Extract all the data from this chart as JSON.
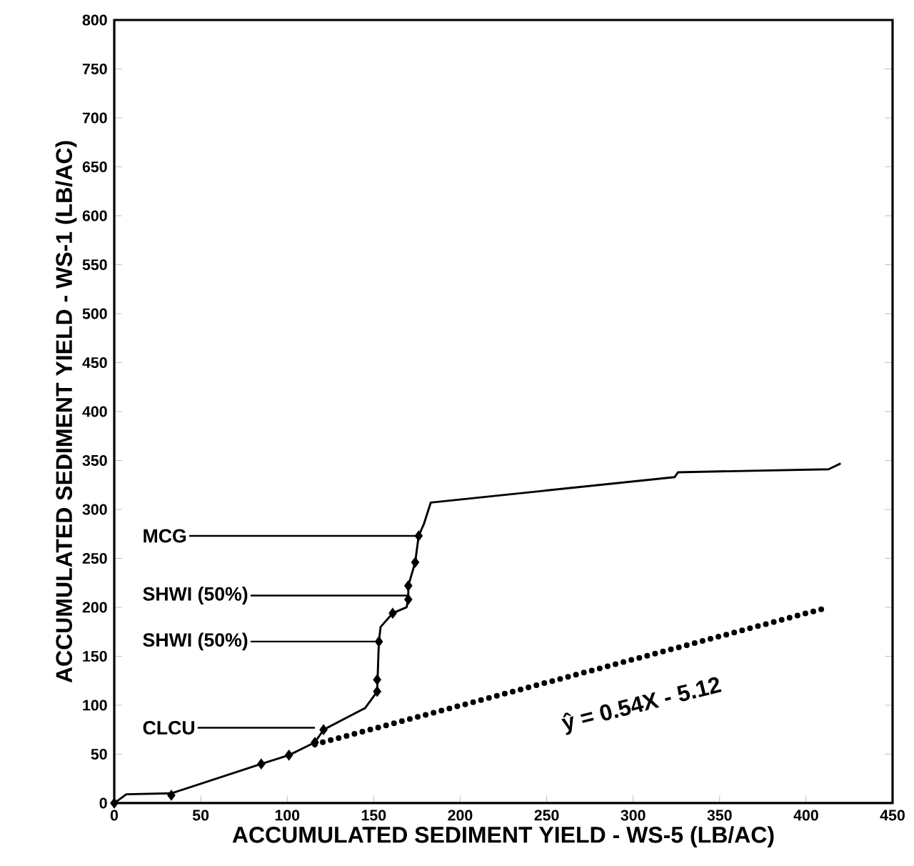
{
  "chart_data": {
    "type": "line",
    "xlabel": "ACCUMULATED SEDIMENT YIELD - WS-5 (LB/AC)",
    "ylabel": "ACCUMULATED SEDIMENT YIELD - WS-1 (LB/AC)",
    "xlim": [
      0,
      450
    ],
    "ylim": [
      0,
      800
    ],
    "xticks": [
      0,
      50,
      100,
      150,
      200,
      250,
      300,
      350,
      400,
      450
    ],
    "yticks": [
      0,
      50,
      100,
      150,
      200,
      250,
      300,
      350,
      400,
      450,
      500,
      550,
      600,
      650,
      700,
      750,
      800
    ],
    "grid": false,
    "series": [
      {
        "color": "#000000",
        "marker": "none",
        "line_style": "solid",
        "x": [
          0,
          7,
          33,
          85,
          101,
          116,
          121,
          145,
          152,
          153,
          154,
          161,
          169,
          170,
          170,
          174,
          176,
          179,
          183,
          324,
          326,
          413,
          420
        ],
        "values": [
          0,
          9,
          10,
          40,
          49,
          62,
          75,
          97,
          114,
          165,
          180,
          194,
          200,
          208,
          222,
          246,
          273,
          285,
          307,
          333,
          338,
          341,
          347
        ]
      },
      {
        "type": "scatter",
        "color": "#000000",
        "marker": "diamond",
        "x": [
          0,
          33,
          85,
          101,
          116,
          121,
          152,
          152,
          153,
          161,
          170,
          170,
          174,
          176
        ],
        "values": [
          0,
          8,
          40,
          49,
          62,
          75,
          114,
          126,
          165,
          194,
          208,
          222,
          246,
          273
        ]
      },
      {
        "type": "line",
        "color": "#000000",
        "marker": "none",
        "line_style": "dotted",
        "x": [
          116,
          413
        ],
        "values": [
          60,
          200
        ]
      }
    ],
    "annotations": [
      {
        "text": "MCG",
        "x": 176,
        "y": 273
      },
      {
        "text": "SHWI (50%)",
        "x": 170,
        "y": 212
      },
      {
        "text": "SHWI (50%)",
        "x": 153,
        "y": 165
      },
      {
        "text": "CLCU",
        "x": 116,
        "y": 77
      },
      "ŷ = 0.54X - 5.12"
    ]
  }
}
